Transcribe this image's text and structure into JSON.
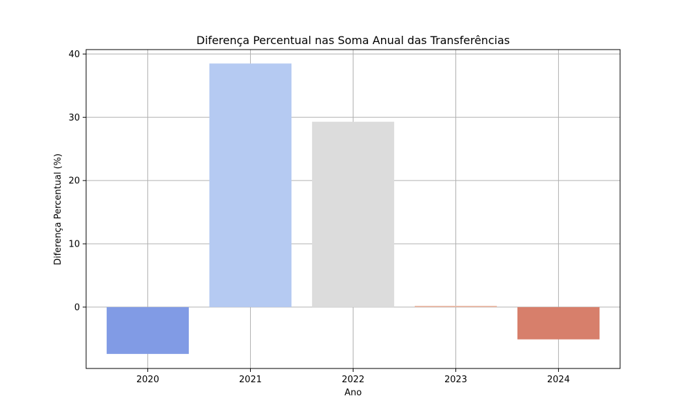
{
  "chart_data": {
    "type": "bar",
    "title": "Diferença Percentual nas Soma Anual das Transferências",
    "xlabel": "Ano",
    "ylabel": "Diferença Percentual (%)",
    "categories": [
      "2020",
      "2021",
      "2022",
      "2023",
      "2024"
    ],
    "values": [
      -7.4,
      38.5,
      29.3,
      0.2,
      -5.1
    ],
    "colors": [
      "#819be5",
      "#b5caf2",
      "#dcdcdc",
      "#eab9a5",
      "#d77f6b"
    ],
    "ylim": [
      -9.7,
      40.7
    ],
    "yticks": [
      0,
      10,
      20,
      30,
      40
    ],
    "grid": true,
    "legend": "none"
  }
}
